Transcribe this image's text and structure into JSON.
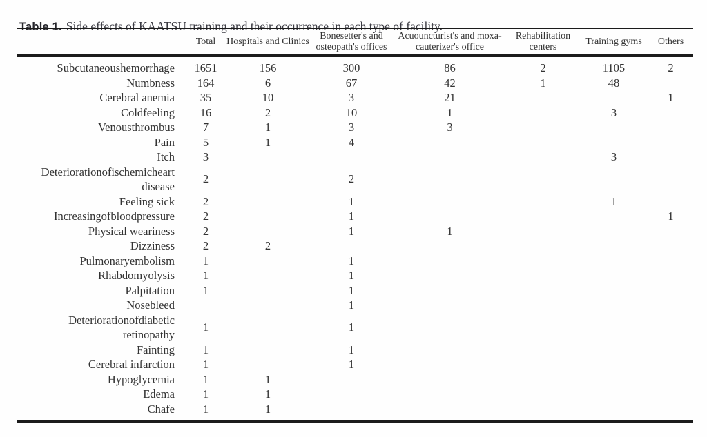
{
  "caption": {
    "label": "Table 1.",
    "text": "Side effects of KAATSU training and their occurrence in each type of facility."
  },
  "table": {
    "columns": [
      "",
      "Total",
      "Hospitals and Clinics",
      "Bonesetter's and osteopath's offices",
      "Acuouncturist's and moxa-cauterizer's office",
      "Rehabilitation centers",
      "Training gyms",
      "Others"
    ],
    "rows": [
      {
        "label": "Subcutaneoushemorrhage",
        "values": [
          "1651",
          "156",
          "300",
          "86",
          "2",
          "1105",
          "2"
        ]
      },
      {
        "label": "Numbness",
        "values": [
          "164",
          "6",
          "67",
          "42",
          "1",
          "48",
          ""
        ]
      },
      {
        "label": "Cerebral anemia",
        "values": [
          "35",
          "10",
          "3",
          "21",
          "",
          "",
          "1"
        ]
      },
      {
        "label": "Coldfeeling",
        "values": [
          "16",
          "2",
          "10",
          "1",
          "",
          "3",
          ""
        ]
      },
      {
        "label": "Venousthrombus",
        "values": [
          "7",
          "1",
          "3",
          "3",
          "",
          "",
          ""
        ]
      },
      {
        "label": "Pain",
        "values": [
          "5",
          "1",
          "4",
          "",
          "",
          "",
          ""
        ]
      },
      {
        "label": "Itch",
        "values": [
          "3",
          "",
          "",
          "",
          "",
          "3",
          ""
        ]
      },
      {
        "label": "Deteriorationofischemicheart disease",
        "values": [
          "2",
          "",
          "2",
          "",
          "",
          "",
          ""
        ]
      },
      {
        "label": "Feeling sick",
        "values": [
          "2",
          "",
          "1",
          "",
          "",
          "1",
          ""
        ]
      },
      {
        "label": "Increasingofbloodpressure",
        "values": [
          "2",
          "",
          "1",
          "",
          "",
          "",
          "1"
        ]
      },
      {
        "label": "Physical weariness",
        "values": [
          "2",
          "",
          "1",
          "1",
          "",
          "",
          ""
        ]
      },
      {
        "label": "Dizziness",
        "values": [
          "2",
          "2",
          "",
          "",
          "",
          "",
          ""
        ]
      },
      {
        "label": "Pulmonaryembolism",
        "values": [
          "1",
          "",
          "1",
          "",
          "",
          "",
          ""
        ]
      },
      {
        "label": "Rhabdomyolysis",
        "values": [
          "1",
          "",
          "1",
          "",
          "",
          "",
          ""
        ]
      },
      {
        "label": "Palpitation",
        "values": [
          "1",
          "",
          "1",
          "",
          "",
          "",
          ""
        ]
      },
      {
        "label": "Nosebleed",
        "values": [
          "",
          "",
          "1",
          "",
          "",
          "",
          ""
        ]
      },
      {
        "label": "Deteriorationofdiabetic retinopathy",
        "values": [
          "1",
          "",
          "1",
          "",
          "",
          "",
          ""
        ]
      },
      {
        "label": "Fainting",
        "values": [
          "1",
          "",
          "1",
          "",
          "",
          "",
          ""
        ]
      },
      {
        "label": "Cerebral infarction",
        "values": [
          "1",
          "",
          "1",
          "",
          "",
          "",
          ""
        ]
      },
      {
        "label": "Hypoglycemia",
        "values": [
          "1",
          "1",
          "",
          "",
          "",
          "",
          ""
        ]
      },
      {
        "label": "Edema",
        "values": [
          "1",
          "1",
          "",
          "",
          "",
          "",
          ""
        ]
      },
      {
        "label": "Chafe",
        "values": [
          "1",
          "1",
          "",
          "",
          "",
          "",
          ""
        ]
      }
    ]
  }
}
